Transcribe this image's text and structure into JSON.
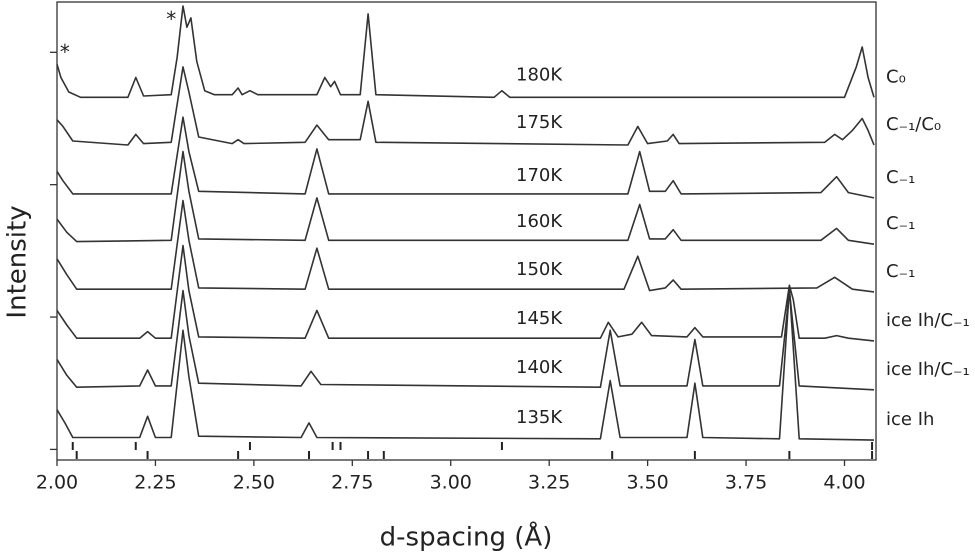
{
  "chart_data": {
    "type": "line",
    "x_label": "d-spacing (Å)",
    "y_label": "Intensity",
    "xlim": [
      2.0,
      4.08
    ],
    "ylim": [
      -0.08,
      3.38
    ],
    "xticks": [
      {
        "value": 2.0,
        "label": "2.00"
      },
      2.25,
      {
        "value": 2.5,
        "label": "2.50"
      },
      2.75,
      {
        "value": 3.0,
        "label": "3.00"
      },
      3.25,
      {
        "value": 3.5,
        "label": "3.50"
      },
      3.75,
      {
        "value": 4.0,
        "label": "4.00"
      }
    ],
    "yticks": [
      0,
      1,
      2,
      3
    ],
    "color": "#333333",
    "annotations": [
      {
        "text": "*",
        "x": 2.02,
        "y": 2.99
      },
      {
        "text": "*",
        "x": 2.29,
        "y": 3.24
      }
    ],
    "reflection_markers": [
      [
        2.04,
        2.2,
        2.49,
        2.7,
        2.72,
        3.13,
        4.07
      ],
      [
        2.05,
        2.23,
        2.46,
        2.64,
        2.79,
        2.83,
        3.41,
        3.62,
        3.86,
        4.07
      ]
    ],
    "series": [
      {
        "name": "180K",
        "phase": "C₀",
        "x": [
          2.0,
          2.01,
          2.03,
          2.06,
          2.18,
          2.2,
          2.22,
          2.29,
          2.305,
          2.32,
          2.33,
          2.34,
          2.355,
          2.375,
          2.4,
          2.445,
          2.46,
          2.47,
          2.49,
          2.51,
          2.66,
          2.68,
          2.695,
          2.705,
          2.72,
          2.77,
          2.79,
          2.81,
          3.11,
          3.13,
          3.15,
          4.0,
          4.03,
          4.045,
          4.06,
          4.075
        ],
        "values": [
          2.91,
          2.81,
          2.7,
          2.66,
          2.66,
          2.81,
          2.67,
          2.68,
          2.96,
          3.35,
          3.19,
          3.26,
          2.93,
          2.71,
          2.68,
          2.68,
          2.73,
          2.68,
          2.71,
          2.68,
          2.68,
          2.81,
          2.74,
          2.78,
          2.68,
          2.68,
          3.29,
          2.68,
          2.66,
          2.71,
          2.66,
          2.66,
          2.89,
          3.04,
          2.81,
          2.66
        ]
      },
      {
        "name": "175K",
        "phase": "C₋₁/C₀",
        "x": [
          2.0,
          2.015,
          2.04,
          2.18,
          2.2,
          2.22,
          2.29,
          2.32,
          2.335,
          2.36,
          2.445,
          2.46,
          2.475,
          2.63,
          2.66,
          2.69,
          2.77,
          2.79,
          2.81,
          3.45,
          3.475,
          3.5,
          3.55,
          3.565,
          3.58,
          3.95,
          3.975,
          3.995,
          4.02,
          4.045,
          4.06,
          4.075
        ],
        "values": [
          2.49,
          2.44,
          2.33,
          2.3,
          2.38,
          2.31,
          2.32,
          2.89,
          2.7,
          2.36,
          2.31,
          2.34,
          2.31,
          2.32,
          2.45,
          2.34,
          2.34,
          2.63,
          2.32,
          2.3,
          2.44,
          2.31,
          2.33,
          2.38,
          2.31,
          2.32,
          2.38,
          2.34,
          2.41,
          2.5,
          2.41,
          2.3
        ]
      },
      {
        "name": "170K",
        "phase": "C₋₁",
        "x": [
          2.0,
          2.015,
          2.04,
          2.29,
          2.32,
          2.335,
          2.36,
          2.63,
          2.66,
          2.69,
          3.45,
          3.48,
          3.505,
          3.545,
          3.565,
          3.585,
          3.94,
          3.98,
          4.01,
          4.075
        ],
        "values": [
          2.1,
          2.03,
          1.93,
          1.93,
          2.51,
          2.25,
          1.95,
          1.93,
          2.27,
          1.93,
          1.93,
          2.25,
          1.95,
          1.95,
          2.03,
          1.93,
          1.94,
          2.06,
          1.94,
          1.9
        ]
      },
      {
        "name": "160K",
        "phase": "C₋₁",
        "x": [
          2.0,
          2.025,
          2.05,
          2.29,
          2.32,
          2.335,
          2.36,
          2.63,
          2.66,
          2.69,
          3.45,
          3.48,
          3.505,
          3.545,
          3.565,
          3.585,
          3.94,
          3.98,
          4.01,
          4.075
        ],
        "values": [
          1.74,
          1.64,
          1.57,
          1.58,
          2.25,
          1.95,
          1.59,
          1.58,
          1.9,
          1.58,
          1.58,
          1.85,
          1.59,
          1.59,
          1.66,
          1.58,
          1.58,
          1.67,
          1.58,
          1.55
        ]
      },
      {
        "name": "150K",
        "phase": "C₋₁",
        "x": [
          2.0,
          2.025,
          2.05,
          2.29,
          2.32,
          2.335,
          2.36,
          2.63,
          2.66,
          2.69,
          3.44,
          3.475,
          3.505,
          3.545,
          3.565,
          3.585,
          3.93,
          3.975,
          4.02,
          4.075
        ],
        "values": [
          1.44,
          1.32,
          1.21,
          1.21,
          1.88,
          1.58,
          1.22,
          1.21,
          1.52,
          1.21,
          1.21,
          1.46,
          1.2,
          1.22,
          1.28,
          1.21,
          1.22,
          1.3,
          1.21,
          1.19
        ]
      },
      {
        "name": "145K",
        "phase": "ice Ih/C₋₁",
        "x": [
          2.0,
          2.025,
          2.05,
          2.21,
          2.23,
          2.25,
          2.29,
          2.32,
          2.335,
          2.36,
          2.63,
          2.66,
          2.69,
          3.38,
          3.4,
          3.425,
          3.46,
          3.485,
          3.51,
          3.6,
          3.62,
          3.64,
          3.84,
          3.86,
          3.87,
          3.885,
          3.95,
          3.98,
          4.01,
          4.075
        ],
        "values": [
          1.05,
          0.94,
          0.84,
          0.84,
          0.89,
          0.84,
          0.84,
          1.54,
          1.2,
          0.85,
          0.84,
          1.05,
          0.84,
          0.84,
          0.96,
          0.85,
          0.87,
          0.96,
          0.86,
          0.85,
          0.92,
          0.85,
          0.85,
          1.24,
          1.13,
          0.84,
          0.84,
          0.86,
          0.84,
          0.82
        ]
      },
      {
        "name": "140K",
        "phase": "ice Ih/C₋₁",
        "x": [
          2.0,
          2.025,
          2.05,
          2.21,
          2.23,
          2.25,
          2.29,
          2.32,
          2.335,
          2.36,
          2.62,
          2.645,
          2.67,
          3.38,
          3.405,
          3.43,
          3.6,
          3.62,
          3.64,
          3.835,
          3.86,
          3.885,
          4.075
        ],
        "values": [
          0.68,
          0.56,
          0.47,
          0.48,
          0.6,
          0.48,
          0.48,
          1.2,
          0.86,
          0.5,
          0.48,
          0.59,
          0.49,
          0.47,
          0.9,
          0.48,
          0.48,
          0.83,
          0.48,
          0.48,
          1.2,
          0.48,
          0.45
        ]
      },
      {
        "name": "135K",
        "phase": "ice Ih",
        "x": [
          2.0,
          2.02,
          2.04,
          2.21,
          2.23,
          2.25,
          2.29,
          2.32,
          2.335,
          2.36,
          2.62,
          2.64,
          2.66,
          3.38,
          3.405,
          3.43,
          3.6,
          3.62,
          3.64,
          3.835,
          3.86,
          3.885,
          4.075
        ],
        "values": [
          0.3,
          0.2,
          0.09,
          0.09,
          0.25,
          0.09,
          0.09,
          0.9,
          0.55,
          0.1,
          0.09,
          0.2,
          0.09,
          0.08,
          0.52,
          0.09,
          0.09,
          0.5,
          0.09,
          0.08,
          1.22,
          0.08,
          0.07
        ]
      }
    ]
  }
}
